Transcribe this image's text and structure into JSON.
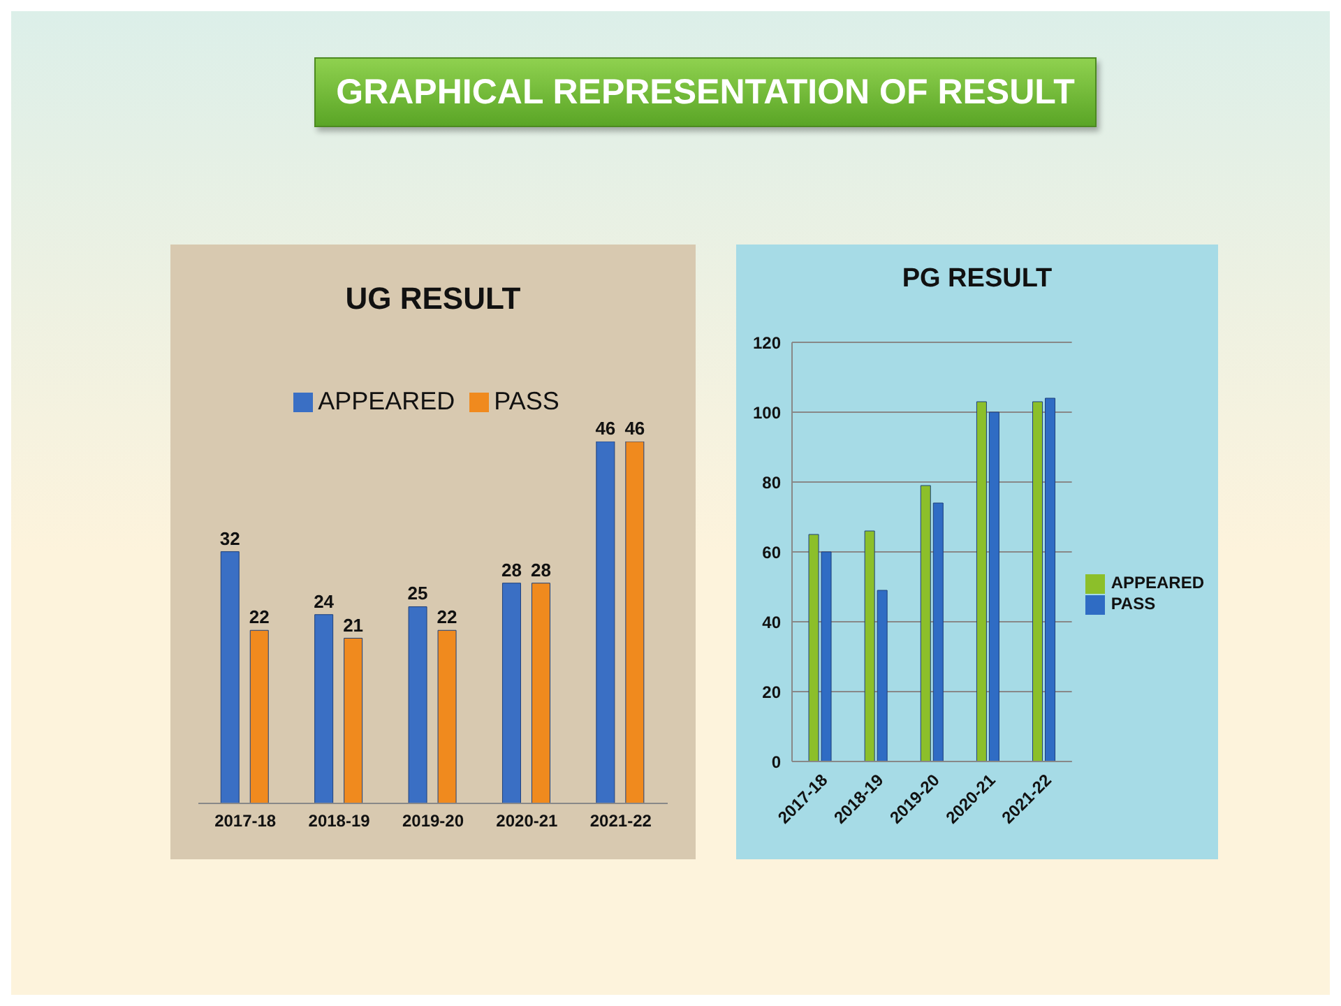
{
  "chart_data": [
    {
      "type": "other",
      "title": "GRAPHICAL REPRESENTATION OF RESULT"
    },
    {
      "type": "bar",
      "title": "UG RESULT",
      "categories": [
        "2017-18",
        "2018-19",
        "2019-20",
        "2020-21",
        "2021-22"
      ],
      "series": [
        {
          "name": "APPEARED",
          "color": "#3a6fc4",
          "values": [
            32,
            24,
            25,
            28,
            46
          ]
        },
        {
          "name": "PASS",
          "color": "#f08a1e",
          "values": [
            22,
            21,
            22,
            28,
            46
          ]
        }
      ],
      "data_labels": true,
      "legend": "top",
      "tick_labels": "x",
      "grid": false
    },
    {
      "type": "bar",
      "title": "PG RESULT",
      "categories": [
        "2017-18",
        "2018-19",
        "2019-20",
        "2020-21",
        "2021-22"
      ],
      "series": [
        {
          "name": "APPEARED",
          "color": "#8cbf2a",
          "values": [
            65,
            66,
            79,
            103,
            103
          ]
        },
        {
          "name": "PASS",
          "color": "#2f6cc4",
          "values": [
            60,
            49,
            74,
            100,
            104
          ]
        }
      ],
      "ylim": [
        0,
        120
      ],
      "yticks": [
        0,
        20,
        40,
        60,
        80,
        100,
        120
      ],
      "grid": "y",
      "legend": "right"
    }
  ]
}
